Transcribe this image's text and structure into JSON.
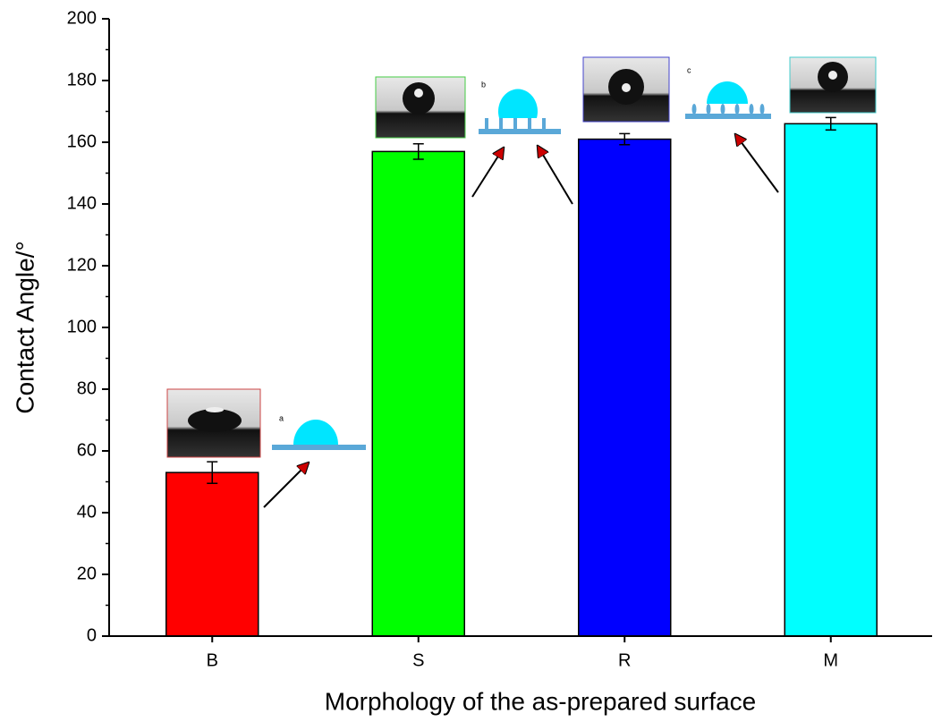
{
  "chart_data": {
    "type": "bar",
    "categories": [
      "B",
      "S",
      "R",
      "M"
    ],
    "values": [
      53,
      157,
      161,
      166
    ],
    "errors": [
      3.5,
      2.5,
      1.8,
      2
    ],
    "colors": [
      "#ff0000",
      "#00ff00",
      "#0000ff",
      "#00ffff"
    ],
    "xlabel": "Morphology of the as-prepared surface",
    "ylabel": "Contact Angle/°",
    "ylim": [
      0,
      200
    ],
    "yticks": [
      0,
      20,
      40,
      60,
      80,
      100,
      120,
      140,
      160,
      180,
      200
    ],
    "inset_labels": [
      "a",
      "b",
      "c"
    ]
  }
}
